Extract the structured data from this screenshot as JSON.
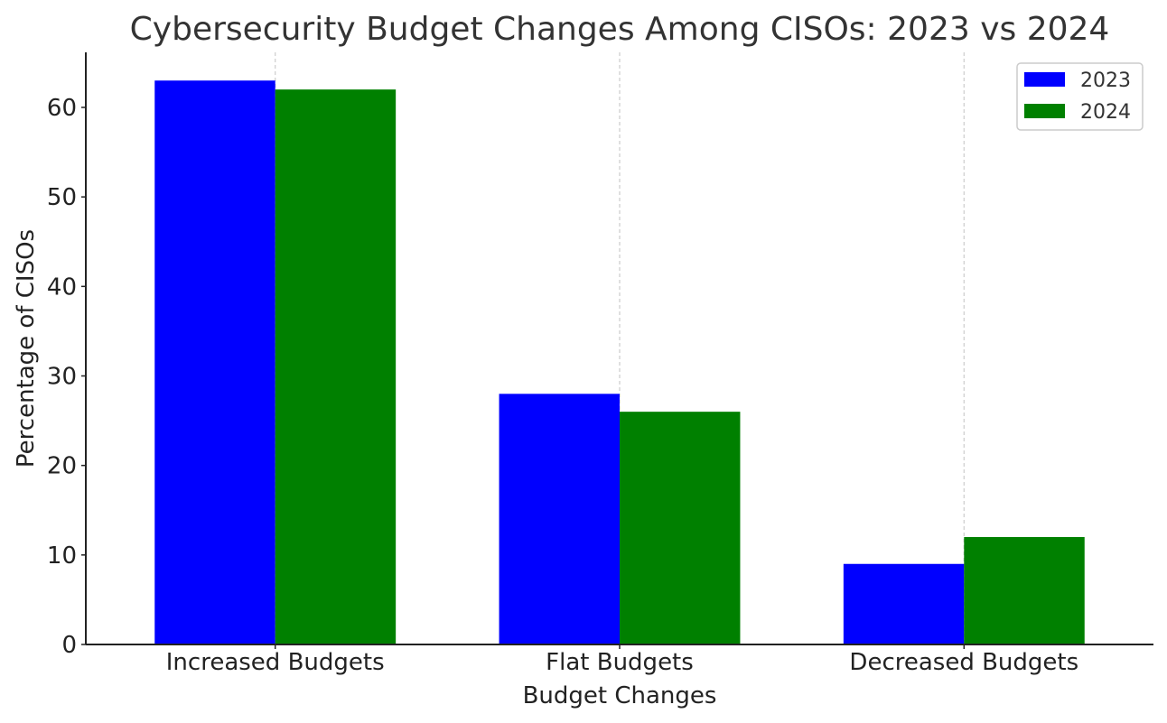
{
  "chart_data": {
    "type": "bar",
    "title": "Cybersecurity Budget Changes Among CISOs: 2023 vs 2024",
    "xlabel": "Budget Changes",
    "ylabel": "Percentage of CISOs",
    "categories": [
      "Increased Budgets",
      "Flat Budgets",
      "Decreased Budgets"
    ],
    "series": [
      {
        "name": "2023",
        "values": [
          63,
          28,
          9
        ],
        "color": "#0000ff"
      },
      {
        "name": "2024",
        "values": [
          62,
          26,
          12
        ],
        "color": "#008000"
      }
    ],
    "ylim": [
      0,
      66.15
    ],
    "yticks": [
      "0",
      "10",
      "20",
      "30",
      "40",
      "50",
      "60"
    ],
    "grid": "vertical-dashed",
    "legend_position": "top-right"
  }
}
